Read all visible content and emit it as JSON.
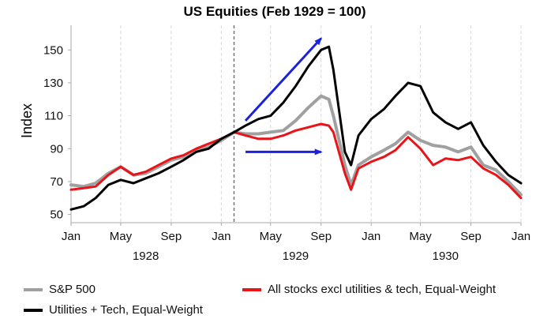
{
  "chart_data": {
    "type": "line",
    "title": "US Equities (Feb 1929 = 100)",
    "xlabel": "",
    "ylabel": "Index",
    "xlim": [
      "1928-01-01",
      "1931-01-01"
    ],
    "ylim": [
      45,
      165
    ],
    "yticks": [
      50,
      70,
      90,
      110,
      130,
      150
    ],
    "xticks": [
      {
        "date": "1928-01-01",
        "label": "Jan"
      },
      {
        "date": "1928-05-01",
        "label": "May"
      },
      {
        "date": "1928-09-01",
        "label": "Sep"
      },
      {
        "date": "1929-01-01",
        "label": "Jan"
      },
      {
        "date": "1929-05-01",
        "label": "May"
      },
      {
        "date": "1929-09-01",
        "label": "Sep"
      },
      {
        "date": "1930-01-01",
        "label": "Jan"
      },
      {
        "date": "1930-05-01",
        "label": "May"
      },
      {
        "date": "1930-09-01",
        "label": "Sep"
      },
      {
        "date": "1931-01-01",
        "label": "Jan"
      }
    ],
    "year_labels": [
      {
        "date": "1928-07-01",
        "label": "1928"
      },
      {
        "date": "1929-07-01",
        "label": "1929"
      },
      {
        "date": "1930-07-01",
        "label": "1930"
      }
    ],
    "grid": "vertical dashed",
    "reference_line": {
      "date": "1929-02-01",
      "style": "dashed"
    },
    "annotations": [
      {
        "type": "arrow",
        "color": "#1a22e0",
        "from": {
          "x": "1929-03-01",
          "y": 107
        },
        "to": {
          "x": "1929-09-01",
          "y": 157
        }
      },
      {
        "type": "arrow",
        "color": "#1a22e0",
        "from": {
          "x": "1929-03-01",
          "y": 88
        },
        "to": {
          "x": "1929-09-01",
          "y": 88
        }
      }
    ],
    "legend_position": "bottom",
    "series": [
      {
        "name": "S&P 500",
        "color": "#a0a0a0",
        "x": [
          "1928-01-01",
          "1928-02-01",
          "1928-03-01",
          "1928-04-01",
          "1928-05-01",
          "1928-06-01",
          "1928-07-01",
          "1928-08-01",
          "1928-09-01",
          "1928-10-01",
          "1928-11-01",
          "1928-12-01",
          "1929-01-01",
          "1929-02-01",
          "1929-03-01",
          "1929-04-01",
          "1929-05-01",
          "1929-06-01",
          "1929-07-01",
          "1929-08-01",
          "1929-09-01",
          "1929-09-20",
          "1929-10-01",
          "1929-10-29",
          "1929-11-13",
          "1929-12-01",
          "1930-01-01",
          "1930-02-01",
          "1930-03-01",
          "1930-04-01",
          "1930-05-01",
          "1930-06-01",
          "1930-07-01",
          "1930-08-01",
          "1930-09-01",
          "1930-10-01",
          "1930-11-01",
          "1930-12-01",
          "1931-01-01"
        ],
        "values": [
          68,
          67,
          69,
          75,
          79,
          74,
          75,
          79,
          83,
          85,
          89,
          91,
          95,
          100,
          99,
          99,
          100,
          101,
          107,
          115,
          122,
          120,
          110,
          80,
          68,
          80,
          85,
          89,
          93,
          100,
          95,
          92,
          91,
          88,
          91,
          80,
          77,
          70,
          62
        ]
      },
      {
        "name": "All stocks excl utilities & tech, Equal-Weight",
        "color": "#e8141a",
        "x": [
          "1928-01-01",
          "1928-02-01",
          "1928-03-01",
          "1928-04-01",
          "1928-05-01",
          "1928-06-01",
          "1928-07-01",
          "1928-08-01",
          "1928-09-01",
          "1928-10-01",
          "1928-11-01",
          "1928-12-01",
          "1929-01-01",
          "1929-02-01",
          "1929-03-01",
          "1929-04-01",
          "1929-05-01",
          "1929-06-01",
          "1929-07-01",
          "1929-08-01",
          "1929-09-01",
          "1929-09-20",
          "1929-10-01",
          "1929-10-29",
          "1929-11-13",
          "1929-12-01",
          "1930-01-01",
          "1930-02-01",
          "1930-03-01",
          "1930-04-01",
          "1930-05-01",
          "1930-06-01",
          "1930-07-01",
          "1930-08-01",
          "1930-09-01",
          "1930-10-01",
          "1930-11-01",
          "1930-12-01",
          "1931-01-01"
        ],
        "values": [
          65,
          66,
          67,
          74,
          79,
          74,
          76,
          80,
          84,
          86,
          90,
          93,
          96,
          100,
          98,
          96,
          96,
          98,
          101,
          103,
          105,
          104,
          100,
          75,
          65,
          78,
          82,
          85,
          89,
          97,
          90,
          80,
          84,
          83,
          85,
          78,
          74,
          68,
          60
        ]
      },
      {
        "name": "Utilities + Tech, Equal-Weight",
        "color": "#000000",
        "x": [
          "1928-01-01",
          "1928-02-01",
          "1928-03-01",
          "1928-04-01",
          "1928-05-01",
          "1928-06-01",
          "1928-07-01",
          "1928-08-01",
          "1928-09-01",
          "1928-10-01",
          "1928-11-01",
          "1928-12-01",
          "1929-01-01",
          "1929-02-01",
          "1929-03-01",
          "1929-04-01",
          "1929-05-01",
          "1929-06-01",
          "1929-07-01",
          "1929-08-01",
          "1929-09-01",
          "1929-09-20",
          "1929-10-01",
          "1929-10-29",
          "1929-11-13",
          "1929-12-01",
          "1930-01-01",
          "1930-02-01",
          "1930-03-01",
          "1930-04-01",
          "1930-05-01",
          "1930-06-01",
          "1930-07-01",
          "1930-08-01",
          "1930-09-01",
          "1930-10-01",
          "1930-11-01",
          "1930-12-01",
          "1931-01-01"
        ],
        "values": [
          53,
          55,
          60,
          68,
          71,
          69,
          72,
          75,
          79,
          83,
          88,
          90,
          96,
          100,
          104,
          108,
          110,
          118,
          128,
          140,
          150,
          152,
          138,
          88,
          80,
          98,
          108,
          114,
          122,
          130,
          128,
          112,
          106,
          102,
          106,
          92,
          82,
          74,
          69
        ]
      }
    ]
  }
}
